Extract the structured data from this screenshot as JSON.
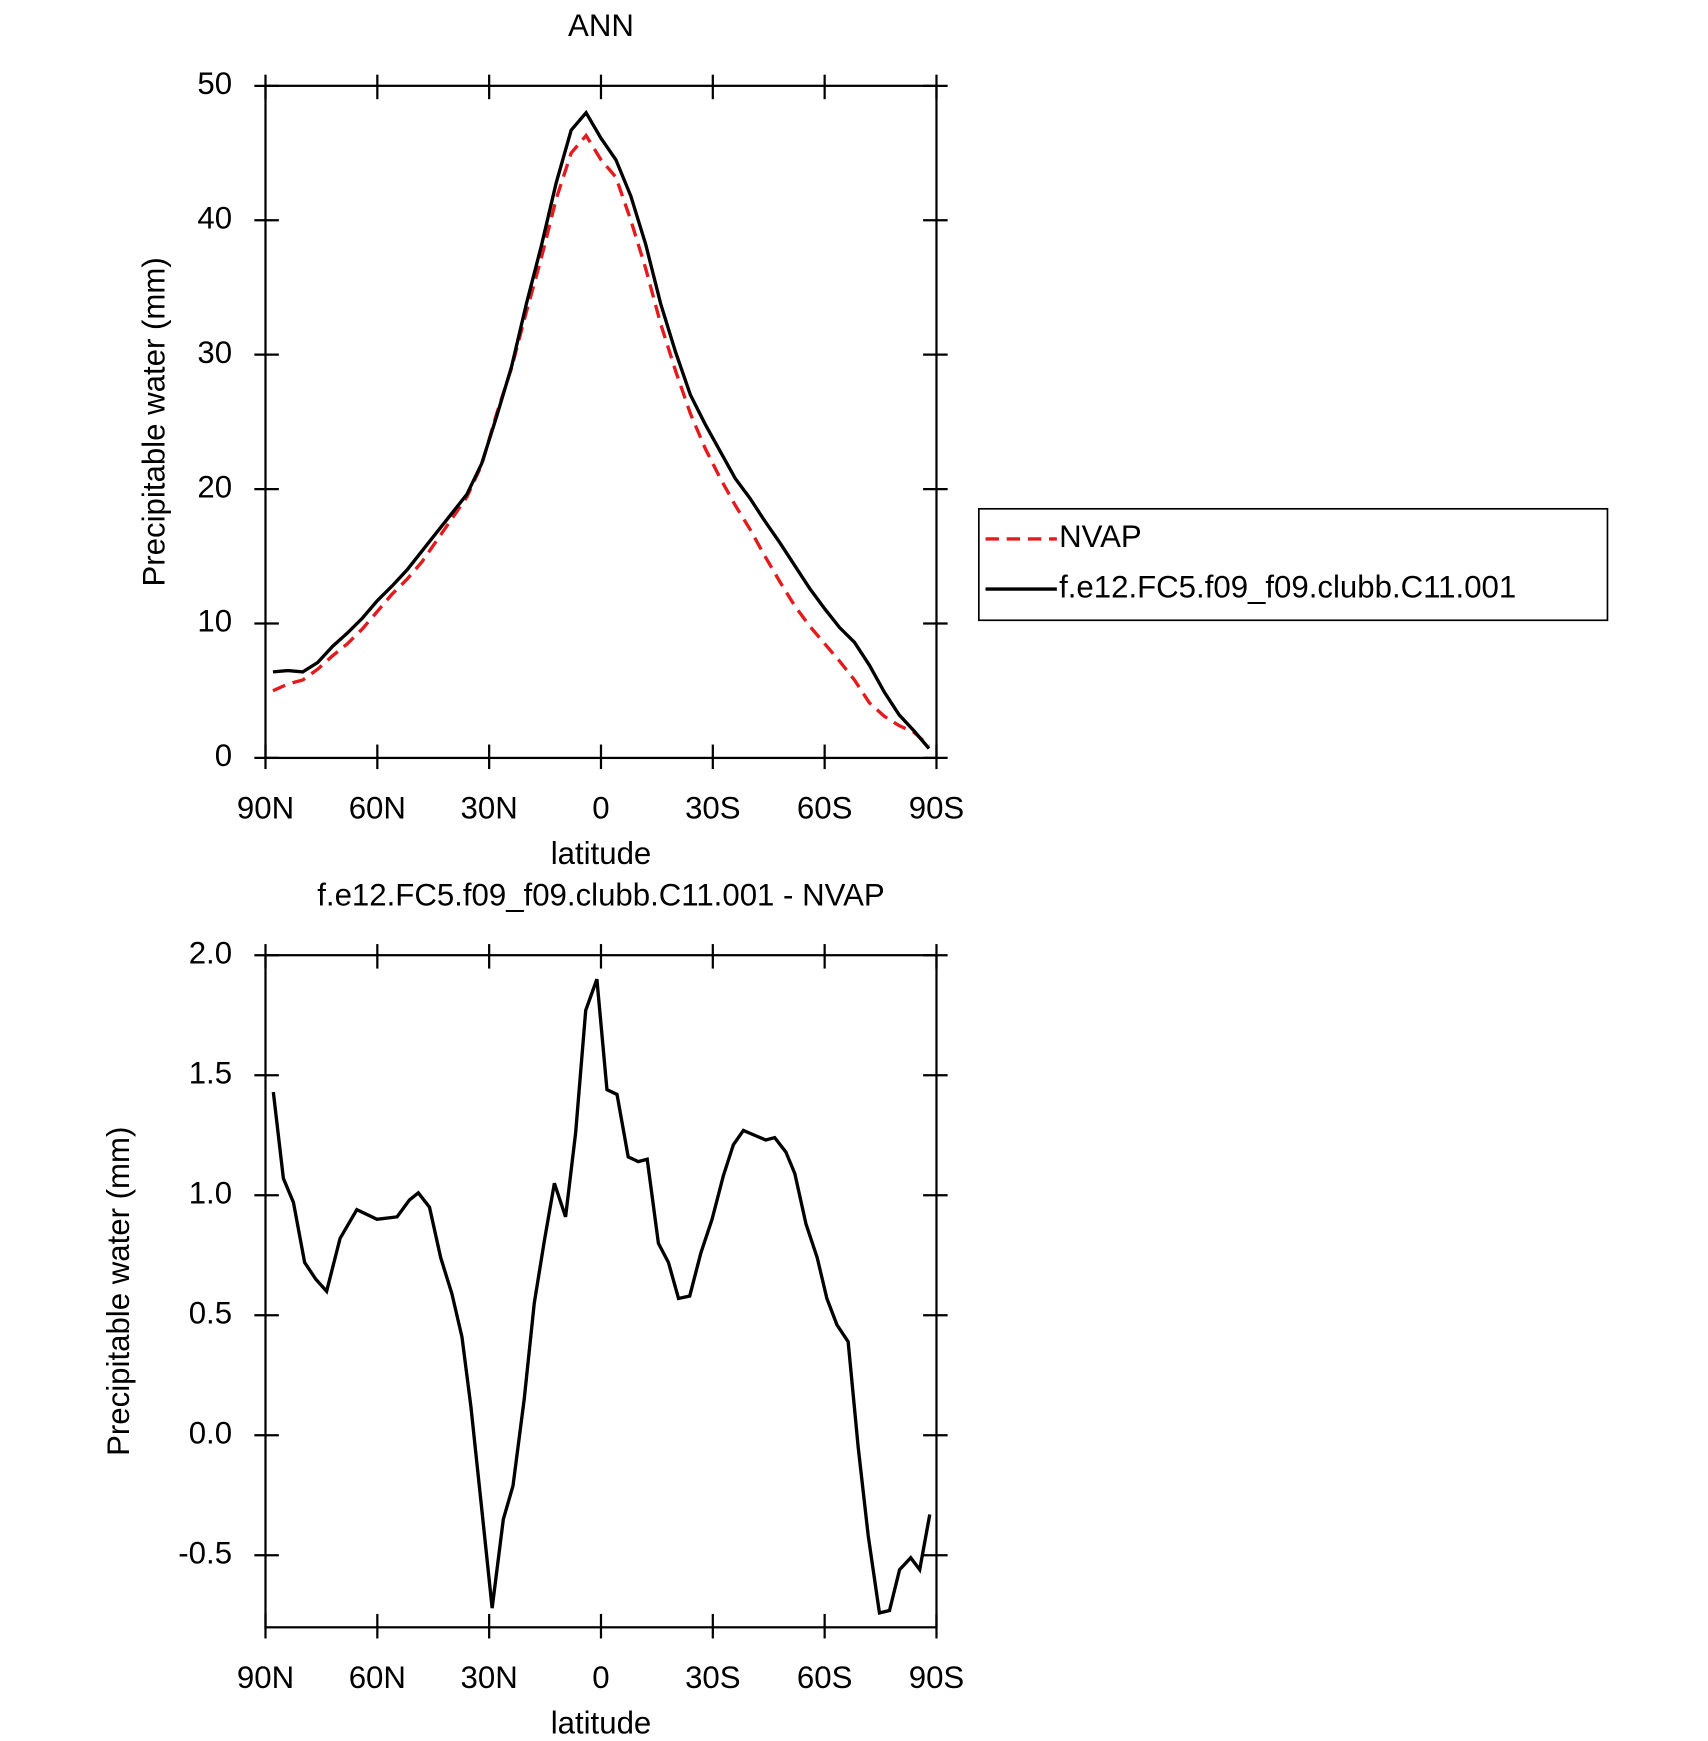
{
  "chart_data": [
    {
      "type": "line",
      "title": "ANN",
      "x_label": "latitude",
      "y_label": "Precipitable water (mm)",
      "x": [
        88,
        84,
        80,
        76,
        72,
        68,
        64,
        60,
        56,
        52,
        48,
        44,
        40,
        36,
        32,
        28,
        24,
        20,
        16,
        12,
        8,
        4,
        0,
        -4,
        -8,
        -12,
        -16,
        -20,
        -24,
        -28,
        -32,
        -36,
        -40,
        -44,
        -48,
        -52,
        -56,
        -60,
        -64,
        -68,
        -72,
        -76,
        -80,
        -84,
        -88
      ],
      "series": [
        {
          "name": "NVAP",
          "color": "#e41a1c",
          "line_style": "dashed",
          "values": [
            5.0,
            5.5,
            5.8,
            6.6,
            7.6,
            8.5,
            9.6,
            10.9,
            12.2,
            13.3,
            14.6,
            16.2,
            17.8,
            19.4,
            21.8,
            25.6,
            29.0,
            33.2,
            37.2,
            41.6,
            45.0,
            46.3,
            44.5,
            43.2,
            40.0,
            36.4,
            32.3,
            28.8,
            25.6,
            23.0,
            20.8,
            18.8,
            17.0,
            15.0,
            13.1,
            11.3,
            9.8,
            8.5,
            7.2,
            5.8,
            4.1,
            3.1,
            2.4,
            1.9,
            0.9
          ]
        },
        {
          "name": "f.e12.FC5.f09_f09.clubb.C11.001",
          "color": "#000000",
          "line_style": "solid",
          "values": [
            6.4,
            6.5,
            6.4,
            7.1,
            8.3,
            9.3,
            10.4,
            11.7,
            12.8,
            14.0,
            15.4,
            16.8,
            18.2,
            19.6,
            21.9,
            25.4,
            29.1,
            33.8,
            38.1,
            42.8,
            46.7,
            48.0,
            46.1,
            44.5,
            41.8,
            38.2,
            33.8,
            30.2,
            27.0,
            24.8,
            22.8,
            20.8,
            19.3,
            17.6,
            16.0,
            14.3,
            12.6,
            11.1,
            9.7,
            8.6,
            6.9,
            4.9,
            3.2,
            2.0,
            0.7
          ]
        }
      ],
      "xlim": [
        90,
        -90
      ],
      "xticks": [
        {
          "value": 90,
          "label": "90N"
        },
        {
          "value": 60,
          "label": "60N"
        },
        {
          "value": 30,
          "label": "30N"
        },
        0,
        {
          "value": -30,
          "label": "30S"
        },
        {
          "value": -60,
          "label": "60S"
        },
        {
          "value": -90,
          "label": "90S"
        }
      ],
      "ylim": [
        0,
        50
      ],
      "yticks": [
        0,
        10,
        20,
        30,
        40,
        50
      ],
      "legend": "right"
    },
    {
      "type": "line",
      "title": "f.e12.FC5.f09_f09.clubb.C11.001 - NVAP",
      "x_label": "latitude",
      "y_label": "Precipitable water (mm)",
      "x": [
        87.9,
        85.2,
        82.5,
        79.5,
        76.5,
        73.6,
        70.0,
        65.5,
        60.1,
        54.7,
        51.4,
        49.0,
        46.0,
        43.0,
        40.0,
        37.3,
        34.9,
        31.9,
        29.2,
        26.2,
        23.6,
        20.6,
        17.9,
        15.2,
        12.5,
        9.5,
        6.8,
        4.1,
        1.1,
        -1.6,
        -4.3,
        -7.3,
        -10.0,
        -12.4,
        -15.4,
        -18.1,
        -20.8,
        -23.8,
        -26.8,
        -29.8,
        -32.8,
        -35.5,
        -38.2,
        -41.2,
        -44.2,
        -46.6,
        -49.6,
        -52.0,
        -55.0,
        -58.0,
        -60.6,
        -63.3,
        -66.3,
        -69.0,
        -71.7,
        -74.7,
        -77.4,
        -80.1,
        -83.1,
        -85.5,
        -88.2
      ],
      "values": [
        1.43,
        1.07,
        0.97,
        0.72,
        0.65,
        0.6,
        0.82,
        0.94,
        0.9,
        0.91,
        0.98,
        1.01,
        0.95,
        0.74,
        0.59,
        0.41,
        0.12,
        -0.32,
        -0.72,
        -0.35,
        -0.21,
        0.15,
        0.55,
        0.81,
        1.05,
        0.91,
        1.26,
        1.77,
        1.9,
        1.44,
        1.42,
        1.16,
        1.14,
        1.15,
        0.8,
        0.72,
        0.57,
        0.58,
        0.76,
        0.9,
        1.08,
        1.21,
        1.27,
        1.25,
        1.23,
        1.24,
        1.18,
        1.09,
        0.88,
        0.74,
        0.57,
        0.46,
        0.39,
        -0.05,
        -0.42,
        -0.74,
        -0.73,
        -0.56,
        -0.51,
        -0.56,
        -0.33
      ],
      "color": "#000000",
      "xlim": [
        90,
        -90
      ],
      "xticks": [
        {
          "value": 90,
          "label": "90N"
        },
        {
          "value": 60,
          "label": "60N"
        },
        {
          "value": 30,
          "label": "30N"
        },
        0,
        {
          "value": -30,
          "label": "30S"
        },
        {
          "value": -60,
          "label": "60S"
        },
        {
          "value": -90,
          "label": "90S"
        }
      ],
      "ylim": [
        -0.8,
        2.0
      ],
      "yticks": [
        {
          "value": -0.5,
          "label": "-0.5"
        },
        {
          "value": 0,
          "label": "0.0"
        },
        {
          "value": 0.5,
          "label": "0.5"
        },
        {
          "value": 1,
          "label": "1.0"
        },
        {
          "value": 1.5,
          "label": "1.5"
        },
        {
          "value": 2,
          "label": "2.0"
        }
      ]
    }
  ]
}
